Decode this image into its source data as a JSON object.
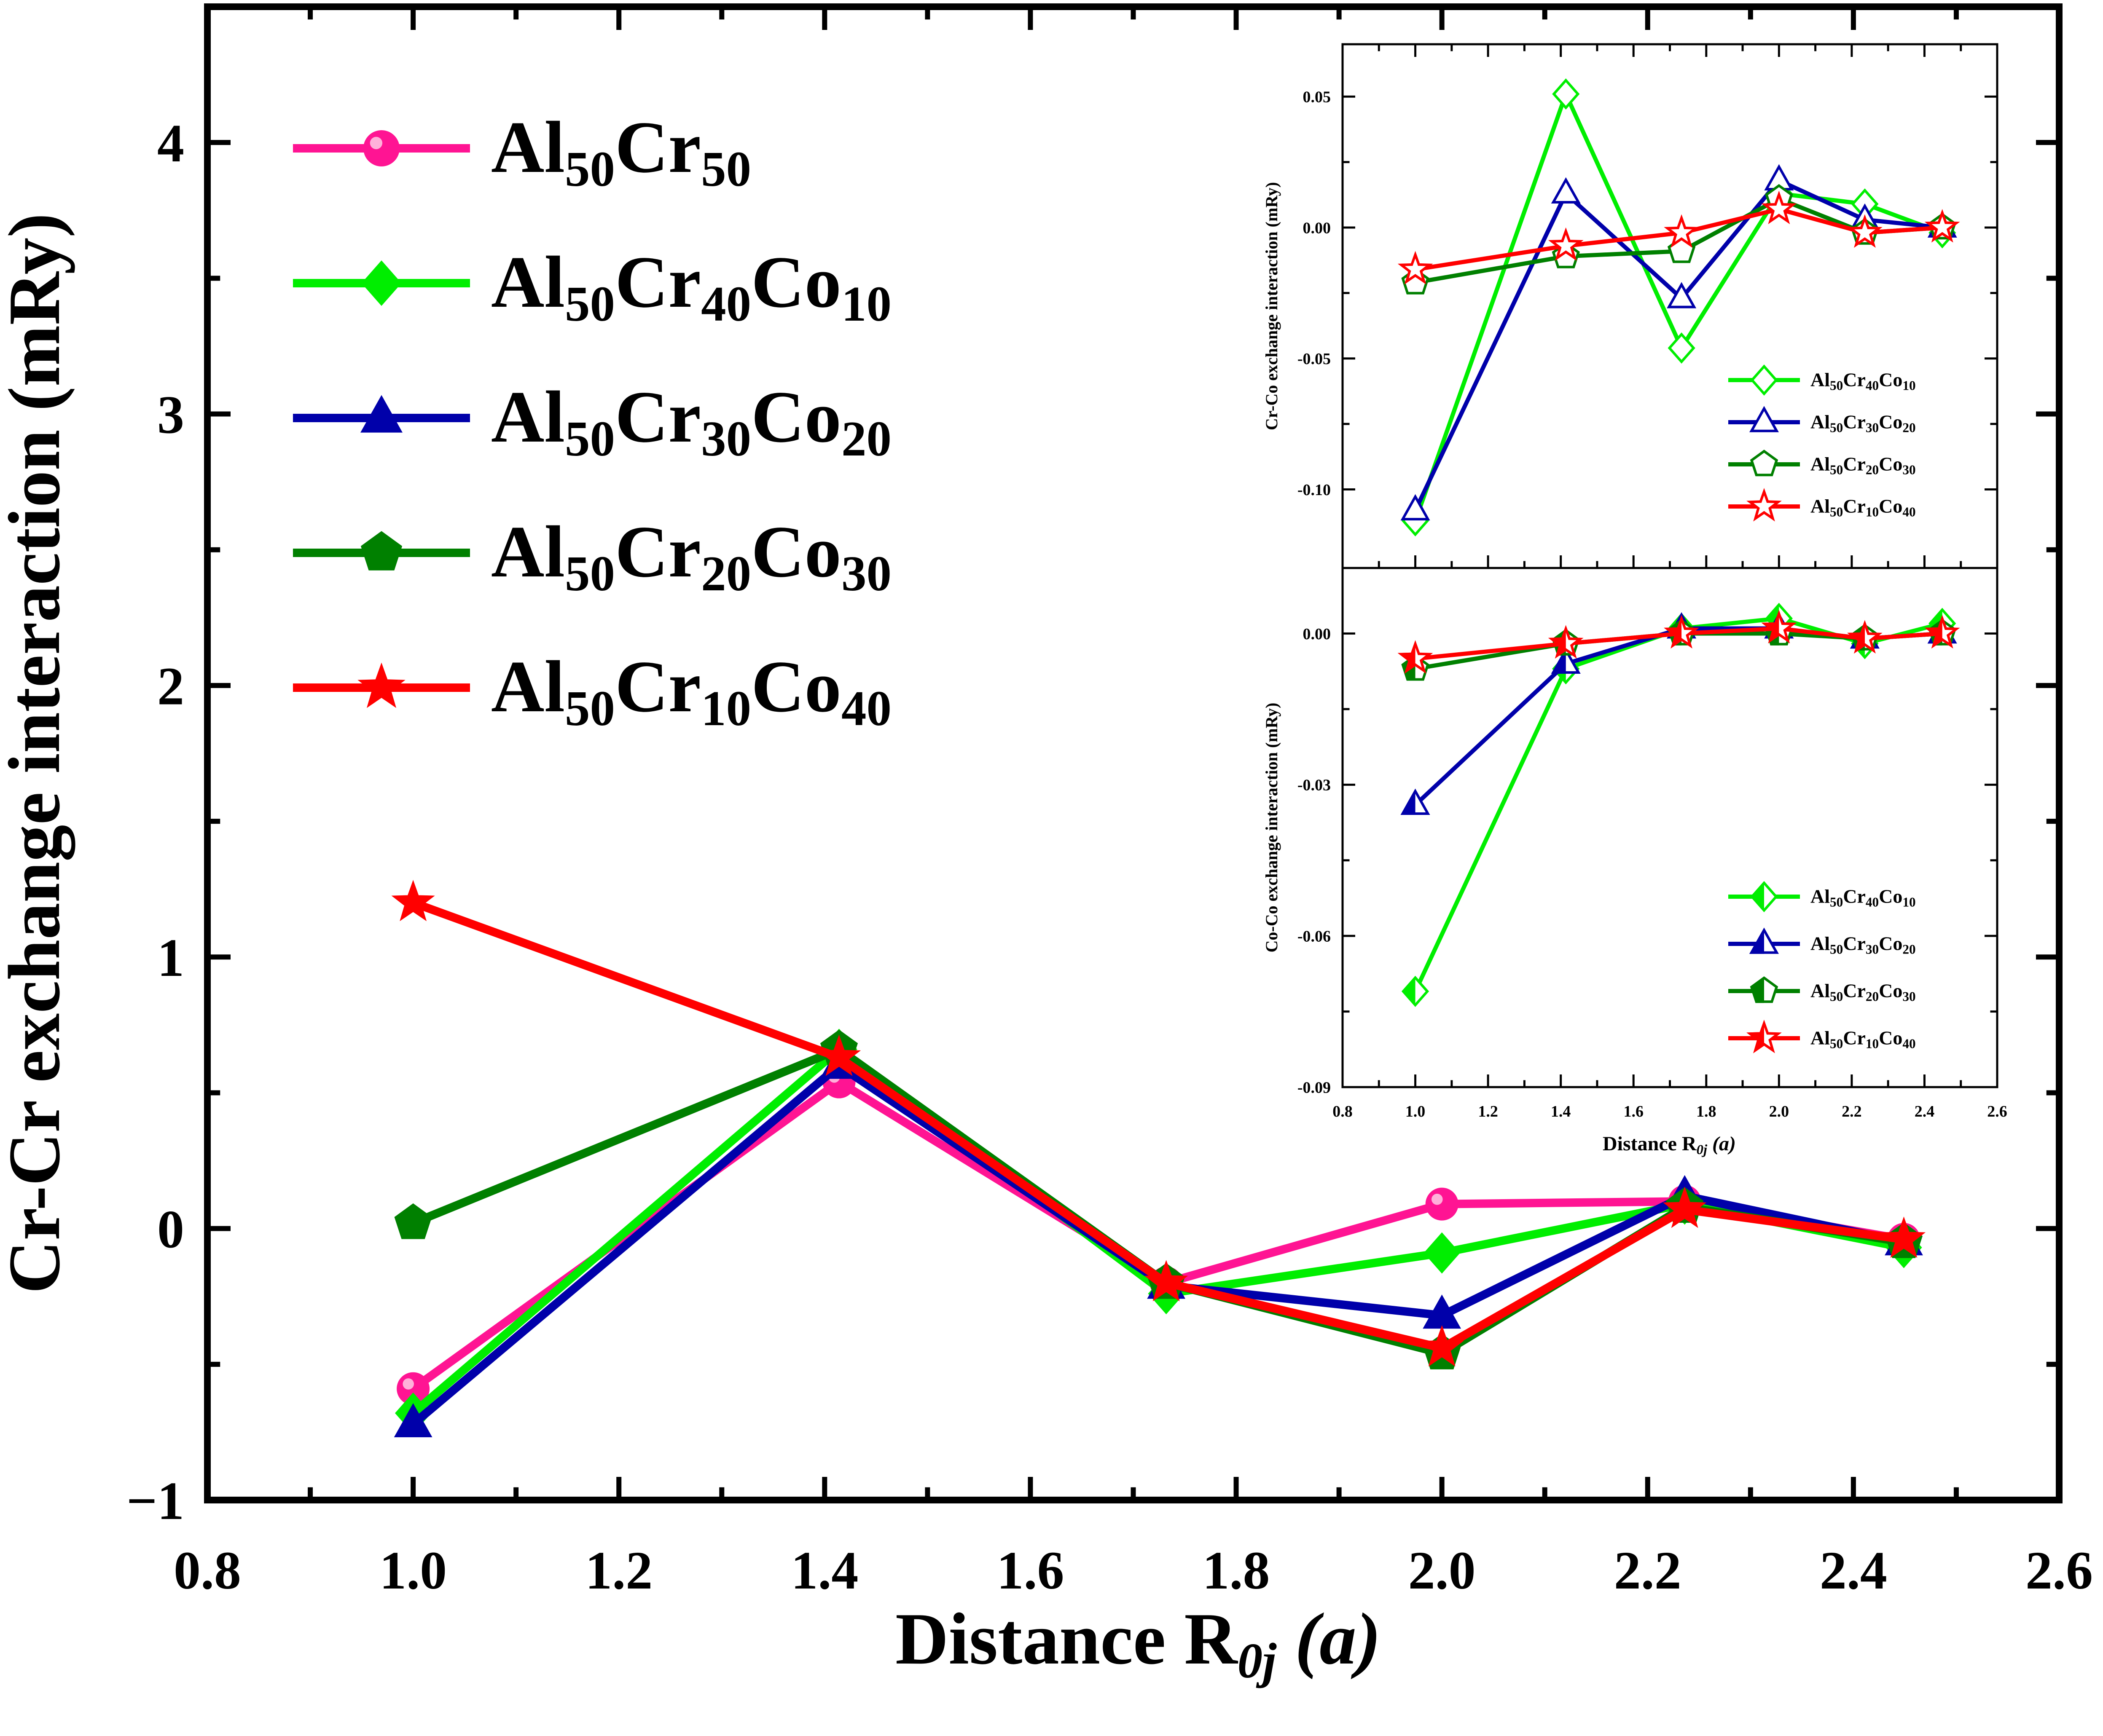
{
  "chart_data": [
    {
      "id": "main",
      "type": "line",
      "title": "",
      "xlabel": "Distance R",
      "xlabel_sub": "0j",
      "xlabel_unit": "(a)",
      "ylabel": "Cr-Cr exchange interaction (mRy)",
      "xlim": [
        0.8,
        2.6
      ],
      "ylim": [
        -1,
        4.5
      ],
      "x_ticks": [
        0.8,
        1.0,
        1.2,
        1.4,
        1.6,
        1.8,
        2.0,
        2.2,
        2.4,
        2.6
      ],
      "x_tick_labels": [
        "0.8",
        "1.0",
        "1.2",
        "1.4",
        "1.6",
        "1.8",
        "2.0",
        "2.2",
        "2.4",
        "2.6"
      ],
      "y_ticks": [
        -1,
        0,
        1,
        2,
        3,
        4
      ],
      "y_tick_labels": [
        "−1",
        "0",
        "1",
        "2",
        "3",
        "4"
      ],
      "grid": false,
      "legend_position": "top-left",
      "x": [
        1.0,
        1.414,
        1.732,
        2.0,
        2.236,
        2.449
      ],
      "series": [
        {
          "name": "Al50Cr50",
          "legend": [
            "Al",
            "50",
            "Cr",
            "50"
          ],
          "color": "#ff1493",
          "marker": "circle",
          "values": [
            -0.59,
            0.54,
            -0.2,
            0.09,
            0.1,
            -0.04
          ]
        },
        {
          "name": "Al50Cr40Co10",
          "legend": [
            "Al",
            "50",
            "Cr",
            "40",
            "Co",
            "10"
          ],
          "color": "#00ee00",
          "marker": "diamond",
          "values": [
            -0.68,
            0.66,
            -0.24,
            -0.09,
            0.09,
            -0.07
          ]
        },
        {
          "name": "Al50Cr30Co20",
          "legend": [
            "Al",
            "50",
            "Cr",
            "30",
            "Co",
            "20"
          ],
          "color": "#0000aa",
          "marker": "triangle",
          "values": [
            -0.72,
            0.6,
            -0.21,
            -0.32,
            0.12,
            -0.05
          ]
        },
        {
          "name": "Al50Cr20Co30",
          "legend": [
            "Al",
            "50",
            "Cr",
            "20",
            "Co",
            "30"
          ],
          "color": "#008000",
          "marker": "pentagon",
          "values": [
            0.02,
            0.66,
            -0.2,
            -0.46,
            0.08,
            -0.05
          ]
        },
        {
          "name": "Al50Cr10Co40",
          "legend": [
            "Al",
            "50",
            "Cr",
            "10",
            "Co",
            "40"
          ],
          "color": "#ff0000",
          "marker": "star",
          "values": [
            1.2,
            0.63,
            -0.2,
            -0.44,
            0.07,
            -0.04
          ]
        }
      ]
    },
    {
      "id": "inset_top",
      "type": "line",
      "ylabel": "Cr-Co exchange interaction (mRy)",
      "xlim": [
        0.8,
        2.6
      ],
      "ylim": [
        -0.13,
        0.07
      ],
      "y_ticks": [
        -0.1,
        -0.05,
        0.0,
        0.05
      ],
      "y_tick_labels": [
        "-0.10",
        "-0.05",
        "0.00",
        "0.05"
      ],
      "legend_position": "bottom-right",
      "x": [
        1.0,
        1.414,
        1.732,
        2.0,
        2.236,
        2.449
      ],
      "series": [
        {
          "name": "Al50Cr40Co10",
          "legend": [
            "Al",
            "50",
            "Cr",
            "40",
            "Co",
            "10"
          ],
          "color": "#00ee00",
          "marker": "diamond",
          "values": [
            -0.112,
            0.051,
            -0.046,
            0.013,
            0.009,
            -0.002
          ]
        },
        {
          "name": "Al50Cr30Co20",
          "legend": [
            "Al",
            "50",
            "Cr",
            "30",
            "Co",
            "20"
          ],
          "color": "#0000aa",
          "marker": "triangle",
          "values": [
            -0.108,
            0.013,
            -0.027,
            0.018,
            0.003,
            0.0
          ]
        },
        {
          "name": "Al50Cr20Co30",
          "legend": [
            "Al",
            "50",
            "Cr",
            "20",
            "Co",
            "30"
          ],
          "color": "#008000",
          "marker": "pentagon",
          "values": [
            -0.021,
            -0.011,
            -0.009,
            0.011,
            -0.002,
            0.0
          ]
        },
        {
          "name": "Al50Cr10Co40",
          "legend": [
            "Al",
            "50",
            "Cr",
            "10",
            "Co",
            "40"
          ],
          "color": "#ff0000",
          "marker": "star",
          "values": [
            -0.016,
            -0.007,
            -0.002,
            0.007,
            -0.002,
            0.0
          ]
        }
      ]
    },
    {
      "id": "inset_bottom",
      "type": "line",
      "xlabel": "Distance R",
      "xlabel_sub": "0j",
      "xlabel_unit": "(a)",
      "ylabel": "Co-Co exchange interaction (mRy)",
      "xlim": [
        0.8,
        2.6
      ],
      "ylim": [
        -0.09,
        0.013
      ],
      "x_ticks": [
        0.8,
        1.0,
        1.2,
        1.4,
        1.6,
        1.8,
        2.0,
        2.2,
        2.4,
        2.6
      ],
      "x_tick_labels": [
        "0.8",
        "1.0",
        "1.2",
        "1.4",
        "1.6",
        "1.8",
        "2.0",
        "2.2",
        "2.4",
        "2.6"
      ],
      "y_ticks": [
        -0.09,
        -0.06,
        -0.03,
        0.0
      ],
      "y_tick_labels": [
        "-0.09",
        "-0.06",
        "-0.03",
        "0.00"
      ],
      "legend_position": "bottom-right",
      "x": [
        1.0,
        1.414,
        1.732,
        2.0,
        2.236,
        2.449
      ],
      "series": [
        {
          "name": "Al50Cr40Co10",
          "legend": [
            "Al",
            "50",
            "Cr",
            "40",
            "Co",
            "10"
          ],
          "color": "#00ee00",
          "marker": "diamond",
          "values": [
            -0.071,
            -0.007,
            0.001,
            0.003,
            -0.002,
            0.002
          ]
        },
        {
          "name": "Al50Cr30Co20",
          "legend": [
            "Al",
            "50",
            "Cr",
            "30",
            "Co",
            "20"
          ],
          "color": "#0000aa",
          "marker": "triangle",
          "values": [
            -0.034,
            -0.006,
            0.001,
            0.001,
            -0.001,
            0.0
          ]
        },
        {
          "name": "Al50Cr20Co30",
          "legend": [
            "Al",
            "50",
            "Cr",
            "20",
            "Co",
            "30"
          ],
          "color": "#008000",
          "marker": "pentagon",
          "values": [
            -0.007,
            -0.002,
            0.0,
            0.0,
            -0.001,
            0.0
          ]
        },
        {
          "name": "Al50Cr10Co40",
          "legend": [
            "Al",
            "50",
            "Cr",
            "10",
            "Co",
            "40"
          ],
          "color": "#ff0000",
          "marker": "star",
          "values": [
            -0.005,
            -0.002,
            0.0,
            0.001,
            -0.001,
            0.0
          ]
        }
      ]
    }
  ]
}
